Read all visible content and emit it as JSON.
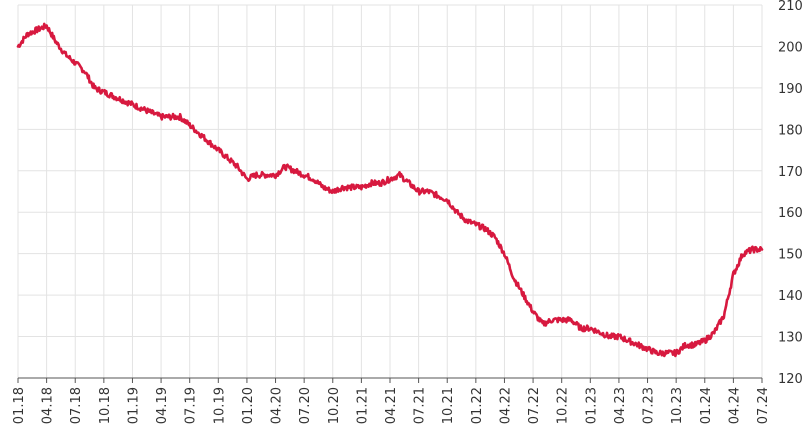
{
  "chart_data": {
    "type": "line",
    "title": "",
    "xlabel": "",
    "ylabel": "",
    "x_ticks": [
      "01.18",
      "04.18",
      "07.18",
      "10.18",
      "01.19",
      "04.19",
      "07.19",
      "10.19",
      "01.20",
      "04.20",
      "07.20",
      "10.20",
      "01.21",
      "04.21",
      "07.21",
      "10.21",
      "01.22",
      "04.22",
      "07.22",
      "10.22",
      "01.23",
      "04.23",
      "07.23",
      "10.23",
      "01.24",
      "04.24",
      "07.24"
    ],
    "y_ticks": [
      "120",
      "130",
      "140",
      "150",
      "160",
      "170",
      "180",
      "190",
      "200",
      "210"
    ],
    "ylim": [
      120,
      210
    ],
    "grid": true,
    "legend": "none",
    "series": [
      {
        "color": "#d7193f",
        "x": [
          "01.18",
          "02.18",
          "03.18",
          "04.18",
          "05.18",
          "06.18",
          "07.18",
          "08.18",
          "09.18",
          "10.18",
          "11.18",
          "12.18",
          "01.19",
          "02.19",
          "03.19",
          "04.19",
          "05.19",
          "06.19",
          "07.19",
          "08.19",
          "09.19",
          "10.19",
          "11.19",
          "12.19",
          "01.20",
          "02.20",
          "03.20",
          "04.20",
          "05.20",
          "06.20",
          "07.20",
          "08.20",
          "09.20",
          "10.20",
          "11.20",
          "12.20",
          "01.21",
          "02.21",
          "03.21",
          "04.21",
          "05.21",
          "06.21",
          "07.21",
          "08.21",
          "09.21",
          "10.21",
          "11.21",
          "12.21",
          "01.22",
          "02.22",
          "03.22",
          "04.22",
          "05.22",
          "06.22",
          "07.22",
          "08.22",
          "09.22",
          "10.22",
          "11.22",
          "12.22",
          "01.23",
          "02.23",
          "03.23",
          "04.23",
          "05.23",
          "06.23",
          "07.23",
          "08.23",
          "09.23",
          "10.23",
          "11.23",
          "12.23",
          "01.24",
          "02.24",
          "03.24",
          "04.24",
          "05.24",
          "06.24",
          "07.24"
        ],
        "values": [
          200,
          203,
          204,
          205,
          201,
          198,
          196,
          194,
          190,
          189,
          188,
          187,
          186,
          185,
          184,
          183,
          183,
          183,
          181,
          179,
          177,
          175,
          173,
          171,
          168,
          169,
          169,
          169,
          171,
          170,
          169,
          168,
          166,
          165,
          166,
          166,
          166,
          167,
          167,
          168,
          169,
          167,
          165,
          165,
          164,
          163,
          160,
          158,
          157,
          156,
          154,
          150,
          144,
          140,
          136,
          133,
          134,
          134,
          134,
          132,
          132,
          131,
          130,
          130,
          129,
          128,
          127,
          126,
          126,
          126,
          128,
          128,
          129,
          131,
          135,
          145,
          150,
          151,
          151
        ]
      }
    ]
  }
}
